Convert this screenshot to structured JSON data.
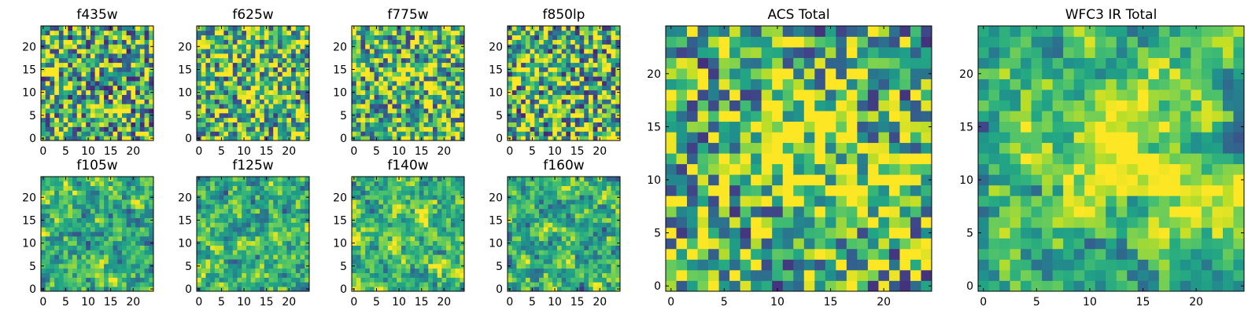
{
  "chart_data": [
    {
      "type": "heatmap",
      "title": "f435w",
      "xticks": [
        "0",
        "5",
        "10",
        "15",
        "20"
      ],
      "yticks": [
        "0",
        "5",
        "10",
        "15",
        "20"
      ],
      "grid_size": 25,
      "xlim": [
        0,
        24
      ],
      "ylim": [
        0,
        24
      ],
      "colormap": "viridis",
      "pattern_mean": 0.62,
      "pattern_contrast": 0.75,
      "pattern_smoothness": 0
    },
    {
      "type": "heatmap",
      "title": "f625w",
      "xticks": [
        "0",
        "5",
        "10",
        "15",
        "20"
      ],
      "yticks": [
        "0",
        "5",
        "10",
        "15",
        "20"
      ],
      "grid_size": 25,
      "xlim": [
        0,
        24
      ],
      "ylim": [
        0,
        24
      ],
      "colormap": "viridis",
      "pattern_mean": 0.66,
      "pattern_contrast": 0.7,
      "pattern_smoothness": 0
    },
    {
      "type": "heatmap",
      "title": "f775w",
      "xticks": [
        "0",
        "5",
        "10",
        "15",
        "20"
      ],
      "yticks": [
        "0",
        "5",
        "10",
        "15",
        "20"
      ],
      "grid_size": 25,
      "xlim": [
        0,
        24
      ],
      "ylim": [
        0,
        24
      ],
      "colormap": "viridis",
      "pattern_mean": 0.66,
      "pattern_contrast": 0.7,
      "pattern_smoothness": 0
    },
    {
      "type": "heatmap",
      "title": "f850lp",
      "xticks": [
        "0",
        "5",
        "10",
        "15",
        "20"
      ],
      "yticks": [
        "0",
        "5",
        "10",
        "15",
        "20"
      ],
      "grid_size": 25,
      "xlim": [
        0,
        24
      ],
      "ylim": [
        0,
        24
      ],
      "colormap": "viridis",
      "pattern_mean": 0.64,
      "pattern_contrast": 0.75,
      "pattern_smoothness": 0
    },
    {
      "type": "heatmap",
      "title": "f105w",
      "xticks": [
        "0",
        "5",
        "10",
        "15",
        "20"
      ],
      "yticks": [
        "0",
        "5",
        "10",
        "15",
        "20"
      ],
      "grid_size": 25,
      "xlim": [
        0,
        24
      ],
      "ylim": [
        0,
        24
      ],
      "colormap": "viridis",
      "pattern_mean": 0.62,
      "pattern_contrast": 0.8,
      "pattern_smoothness": 1
    },
    {
      "type": "heatmap",
      "title": "f125w",
      "xticks": [
        "0",
        "5",
        "10",
        "15",
        "20"
      ],
      "yticks": [
        "0",
        "5",
        "10",
        "15",
        "20"
      ],
      "grid_size": 25,
      "xlim": [
        0,
        24
      ],
      "ylim": [
        0,
        24
      ],
      "colormap": "viridis",
      "pattern_mean": 0.64,
      "pattern_contrast": 0.8,
      "pattern_smoothness": 1
    },
    {
      "type": "heatmap",
      "title": "f140w",
      "xticks": [
        "0",
        "5",
        "10",
        "15",
        "20"
      ],
      "yticks": [
        "0",
        "5",
        "10",
        "15",
        "20"
      ],
      "grid_size": 25,
      "xlim": [
        0,
        24
      ],
      "ylim": [
        0,
        24
      ],
      "colormap": "viridis",
      "pattern_mean": 0.68,
      "pattern_contrast": 0.8,
      "pattern_smoothness": 1
    },
    {
      "type": "heatmap",
      "title": "f160w",
      "xticks": [
        "0",
        "5",
        "10",
        "15",
        "20"
      ],
      "yticks": [
        "0",
        "5",
        "10",
        "15",
        "20"
      ],
      "grid_size": 25,
      "xlim": [
        0,
        24
      ],
      "ylim": [
        0,
        24
      ],
      "colormap": "viridis",
      "pattern_mean": 0.64,
      "pattern_contrast": 0.8,
      "pattern_smoothness": 1
    },
    {
      "type": "heatmap",
      "title": "ACS Total",
      "xticks": [
        "0",
        "5",
        "10",
        "15",
        "20"
      ],
      "yticks": [
        "0",
        "5",
        "10",
        "15",
        "20"
      ],
      "grid_size": 25,
      "xlim": [
        0,
        24
      ],
      "ylim": [
        0,
        24
      ],
      "colormap": "viridis",
      "pattern_mean": 0.63,
      "pattern_contrast": 0.7,
      "pattern_smoothness": 0,
      "hotspots": [
        [
          12,
          13,
          3.5,
          0.35
        ],
        [
          19,
          10,
          2.5,
          0.2
        ]
      ]
    },
    {
      "type": "heatmap",
      "title": "WFC3 IR Total",
      "xticks": [
        "0",
        "5",
        "10",
        "15",
        "20"
      ],
      "yticks": [
        "0",
        "5",
        "10",
        "15",
        "20"
      ],
      "grid_size": 25,
      "xlim": [
        0,
        24
      ],
      "ylim": [
        0,
        24
      ],
      "colormap": "viridis",
      "pattern_mean": 0.62,
      "pattern_contrast": 0.75,
      "pattern_smoothness": 1,
      "hotspots": [
        [
          12,
          13,
          4,
          0.4
        ],
        [
          17,
          9,
          3,
          0.25
        ]
      ]
    }
  ]
}
